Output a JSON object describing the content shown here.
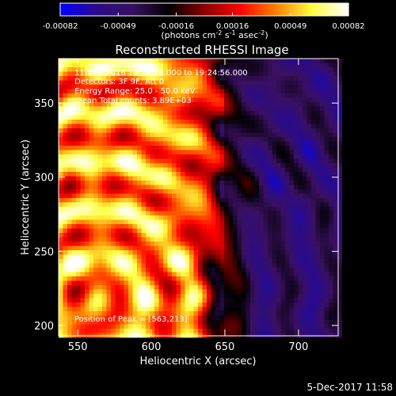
{
  "chart_data": {
    "type": "heatmap",
    "title": "Reconstructed RHESSI Image",
    "xlabel": "Heliocentric X (arcsec)",
    "ylabel": "Heliocentric Y (arcsec)",
    "xlim": [
      537,
      727
    ],
    "ylim": [
      193,
      380
    ],
    "x_ticks": [
      "550",
      "600",
      "650",
      "700"
    ],
    "x_tick_values": [
      550,
      600,
      650,
      700
    ],
    "y_ticks": [
      "200",
      "250",
      "300",
      "350"
    ],
    "y_tick_values": [
      200,
      250,
      300,
      350
    ],
    "colorbar": {
      "label": "(photons cm",
      "label_sup1": "-2",
      "label_mid1": " s",
      "label_sup2": "-1",
      "label_mid2": " asec",
      "label_sup3": "-2",
      "label_end": ")",
      "ticks": [
        "-0.00082",
        "-0.00049",
        "-0.00016",
        "0.00016",
        "0.00049",
        "0.00082"
      ],
      "range": [
        -0.00082,
        0.00082
      ]
    },
    "annotations": {
      "time": "11-Dec-2016 19:14:56.000 to 19:24:56.000",
      "detectors": "Detectors: 3F 9F, Att 0",
      "energy": "Energy Range: 25.0 - 50.0 keV",
      "clean": "Clean    Total counts: 3.89E+03",
      "peak": "Position of Peak = [563,213]"
    },
    "peak_position": [
      563,
      213
    ],
    "grid": false,
    "colormap": [
      "#0000ff",
      "#2a0a8a",
      "#3a1060",
      "#000000",
      "#8a0000",
      "#ff0000",
      "#ff8000",
      "#ffff40",
      "#ffffff"
    ]
  },
  "footer": {
    "timestamp": "5-Dec-2017 11:58"
  }
}
